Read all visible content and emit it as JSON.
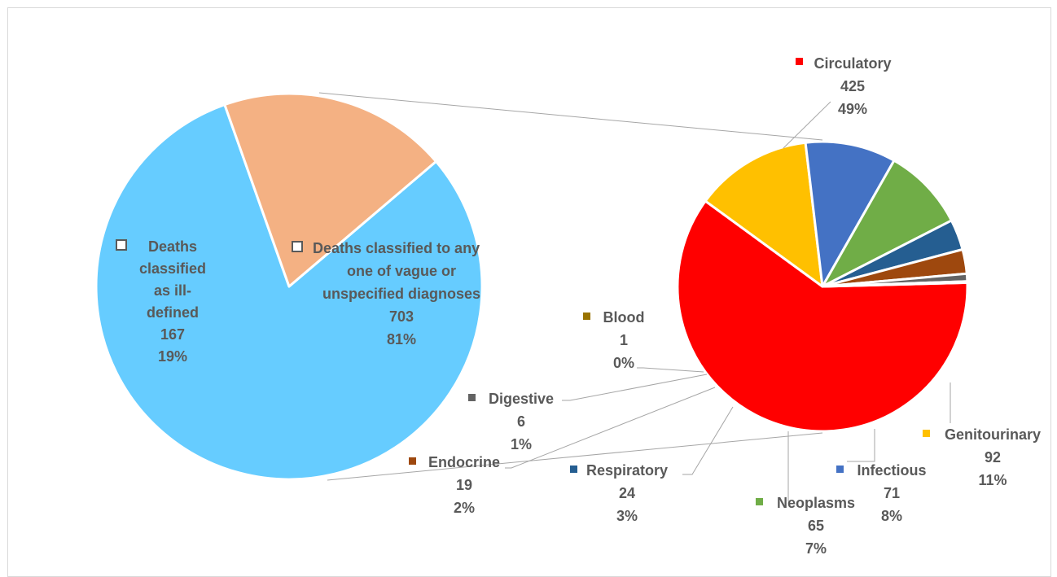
{
  "chart_data": {
    "type": "pie",
    "title": "",
    "main_pie": {
      "slices": [
        {
          "name": "Deaths classified to any one of vague or unspecified diagnoses",
          "value": 703,
          "percent": "81%",
          "color": "#66CCFF"
        },
        {
          "name": "Deaths classified as ill-defined",
          "value": 167,
          "percent": "19%",
          "color": "#F4B183"
        }
      ]
    },
    "breakdown_pie": {
      "parent": "Deaths classified to any one of vague or unspecified diagnoses",
      "slices": [
        {
          "name": "Circulatory",
          "value": 425,
          "percent": "49%",
          "color": "#FF0000"
        },
        {
          "name": "Genitourinary",
          "value": 92,
          "percent": "11%",
          "color": "#FFC000"
        },
        {
          "name": "Infectious",
          "value": 71,
          "percent": "8%",
          "color": "#4472C4"
        },
        {
          "name": "Neoplasms",
          "value": 65,
          "percent": "7%",
          "color": "#70AD47"
        },
        {
          "name": "Respiratory",
          "value": 24,
          "percent": "3%",
          "color": "#255E91"
        },
        {
          "name": "Endocrine",
          "value": 19,
          "percent": "2%",
          "color": "#9E480E"
        },
        {
          "name": "Digestive",
          "value": 6,
          "percent": "1%",
          "color": "#636363"
        },
        {
          "name": "Blood",
          "value": 1,
          "percent": "0%",
          "color": "#997300"
        }
      ]
    }
  },
  "labels": {
    "vague": {
      "lines": [
        "Deaths classified to any",
        "one of vague or",
        "unspecified diagnoses"
      ],
      "value": "703",
      "percent": "81%"
    },
    "ill": {
      "lines": [
        "Deaths",
        "classified",
        "as ill-",
        "defined"
      ],
      "value": "167",
      "percent": "19%"
    },
    "circulatory": {
      "name": "Circulatory",
      "value": "425",
      "percent": "49%"
    },
    "genitourinary": {
      "name": "Genitourinary",
      "value": "92",
      "percent": "11%"
    },
    "infectious": {
      "name": "Infectious",
      "value": "71",
      "percent": "8%"
    },
    "neoplasms": {
      "name": "Neoplasms",
      "value": "65",
      "percent": "7%"
    },
    "respiratory": {
      "name": "Respiratory",
      "value": "24",
      "percent": "3%"
    },
    "endocrine": {
      "name": "Endocrine",
      "value": "19",
      "percent": "2%"
    },
    "digestive": {
      "name": "Digestive",
      "value": "6",
      "percent": "1%"
    },
    "blood": {
      "name": "Blood",
      "value": "1",
      "percent": "0%"
    }
  }
}
